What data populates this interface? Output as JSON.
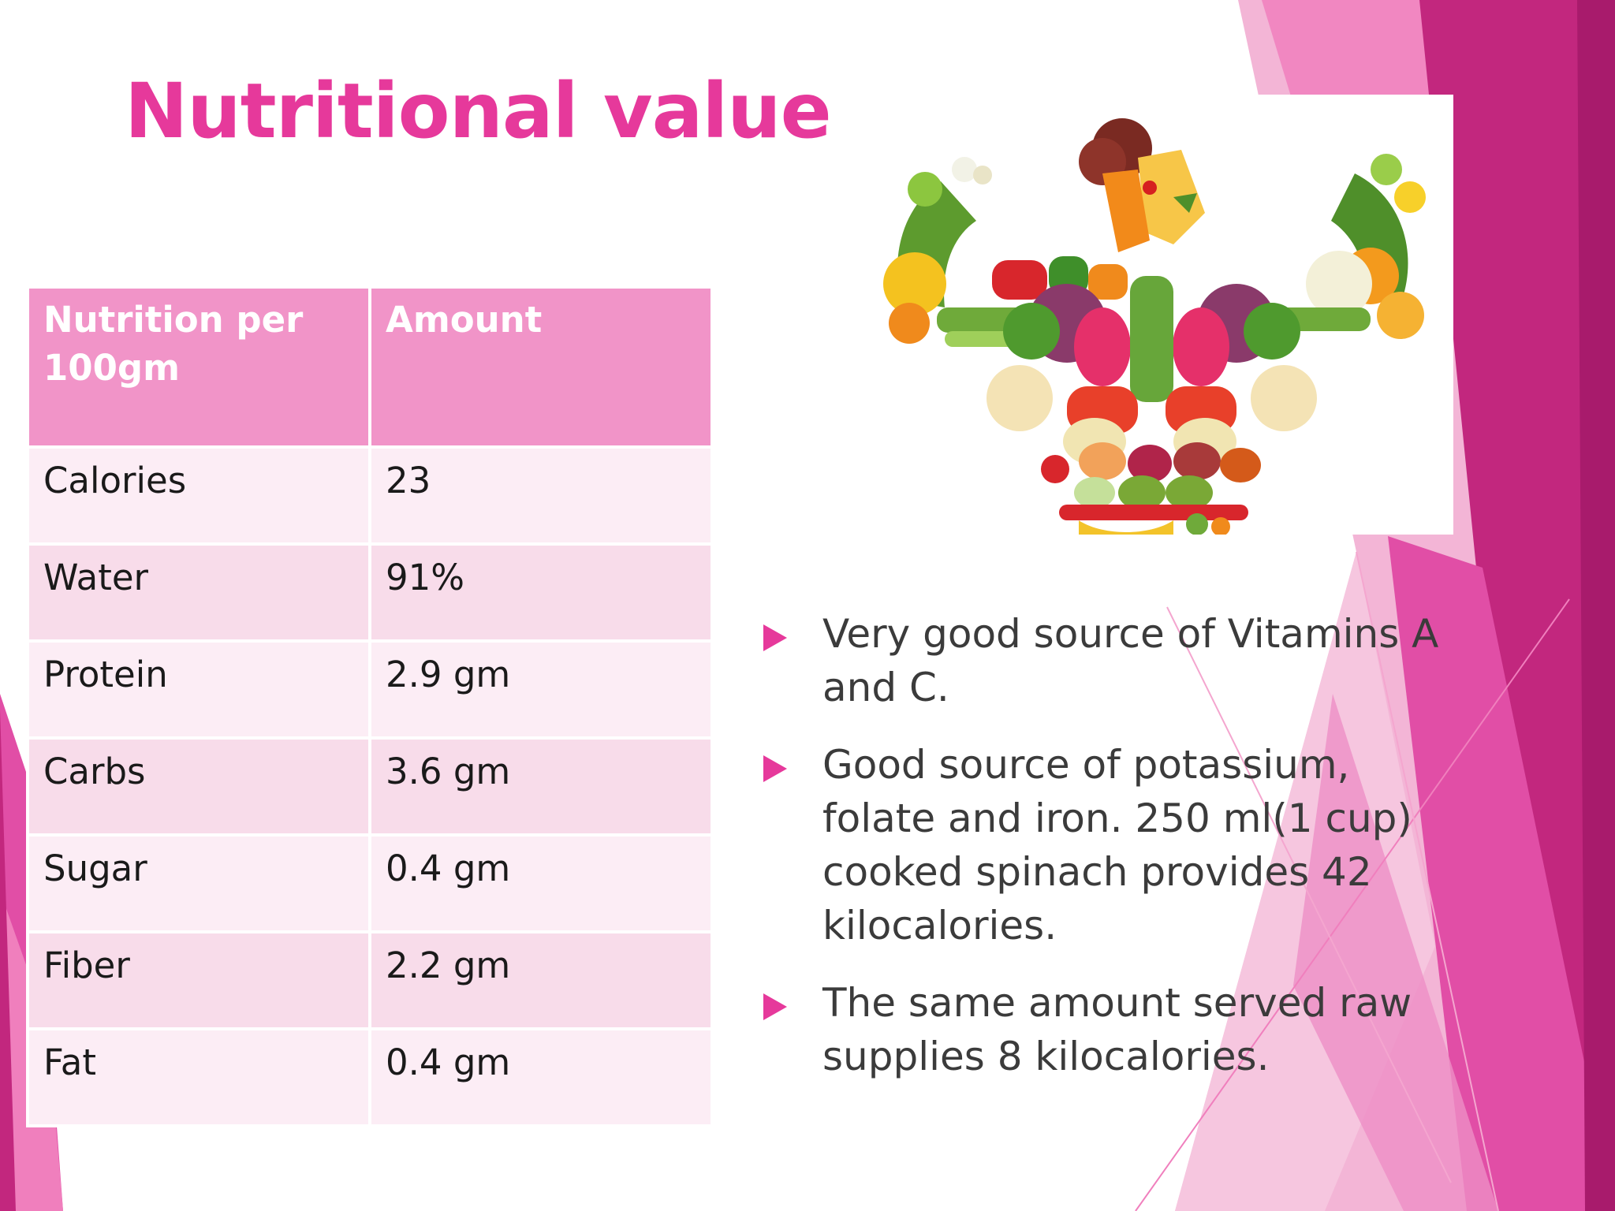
{
  "slide": {
    "title": "Nutritional value",
    "colors": {
      "accent": "#e6399b",
      "header_fill": "#f194c8",
      "row_fill_a": "#f8dcea",
      "row_fill_b": "#fcedf5"
    }
  },
  "table": {
    "headers": [
      "Nutrition per 100gm",
      "Amount"
    ],
    "rows": [
      {
        "nutrient": "Calories",
        "amount": "23"
      },
      {
        "nutrient": "Water",
        "amount": "91%"
      },
      {
        "nutrient": "Protein",
        "amount": "2.9 gm"
      },
      {
        "nutrient": "Carbs",
        "amount": "3.6 gm"
      },
      {
        "nutrient": "Sugar",
        "amount": "0.4 gm"
      },
      {
        "nutrient": "Fiber",
        "amount": "2.2 gm"
      },
      {
        "nutrient": "Fat",
        "amount": "0.4 gm"
      }
    ]
  },
  "image": {
    "icon": "vegetable-strongman-illustration"
  },
  "bullets": [
    "Very good source of Vitamins A and C.",
    "Good source of potassium, folate and iron. 250 ml(1 cup) cooked spinach provides 42 kilocalories.",
    "The same amount served raw supplies 8 kilocalories."
  ]
}
